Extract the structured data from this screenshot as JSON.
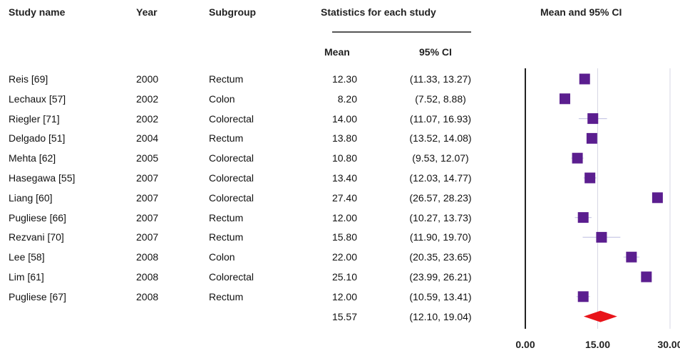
{
  "columns": {
    "study_name": "Study name",
    "year": "Year",
    "subgroup": "Subgroup",
    "statistics": "Statistics for each study",
    "mean": "Mean",
    "ci": "95% CI",
    "forest_title": "Mean and 95% CI"
  },
  "colors": {
    "marker": "#5b1e8f",
    "summary": "#e8141a",
    "axis": "#222222",
    "gridline": "#d7d7e4",
    "ci_line": "#c9c9e6"
  },
  "chart_data": {
    "type": "forest",
    "title": "Mean and 95% CI",
    "xlim": [
      0,
      30
    ],
    "xticks": [
      "0.00",
      "15.00",
      "30.00"
    ],
    "gridlines": [
      15,
      30
    ],
    "studies": [
      {
        "name": "Reis [69]",
        "year": "2000",
        "subgroup": "Rectum",
        "mean": 12.3,
        "lo": 11.33,
        "hi": 13.27,
        "mean_label": "12.30",
        "ci_label": "(11.33, 13.27)"
      },
      {
        "name": "Lechaux [57]",
        "year": "2002",
        "subgroup": "Colon",
        "mean": 8.2,
        "lo": 7.52,
        "hi": 8.88,
        "mean_label": "8.20",
        "ci_label": "(7.52, 8.88)"
      },
      {
        "name": "Riegler [71]",
        "year": "2002",
        "subgroup": "Colorectal",
        "mean": 14.0,
        "lo": 11.07,
        "hi": 16.93,
        "mean_label": "14.00",
        "ci_label": "(11.07, 16.93)"
      },
      {
        "name": "Delgado [51]",
        "year": "2004",
        "subgroup": "Rectum",
        "mean": 13.8,
        "lo": 13.52,
        "hi": 14.08,
        "mean_label": "13.80",
        "ci_label": "(13.52, 14.08)"
      },
      {
        "name": "Mehta [62]",
        "year": "2005",
        "subgroup": "Colorectal",
        "mean": 10.8,
        "lo": 9.53,
        "hi": 12.07,
        "mean_label": "10.80",
        "ci_label": "(9.53, 12.07)"
      },
      {
        "name": "Hasegawa [55]",
        "year": "2007",
        "subgroup": "Colorectal",
        "mean": 13.4,
        "lo": 12.03,
        "hi": 14.77,
        "mean_label": "13.40",
        "ci_label": "(12.03, 14.77)"
      },
      {
        "name": "Liang [60]",
        "year": "2007",
        "subgroup": "Colorectal",
        "mean": 27.4,
        "lo": 26.57,
        "hi": 28.23,
        "mean_label": "27.40",
        "ci_label": "(26.57, 28.23)"
      },
      {
        "name": "Pugliese [66]",
        "year": "2007",
        "subgroup": "Rectum",
        "mean": 12.0,
        "lo": 10.27,
        "hi": 13.73,
        "mean_label": "12.00",
        "ci_label": "(10.27, 13.73)"
      },
      {
        "name": "Rezvani [70]",
        "year": "2007",
        "subgroup": "Rectum",
        "mean": 15.8,
        "lo": 11.9,
        "hi": 19.7,
        "mean_label": "15.80",
        "ci_label": "(11.90, 19.70)"
      },
      {
        "name": "Lee [58]",
        "year": "2008",
        "subgroup": "Colon",
        "mean": 22.0,
        "lo": 20.35,
        "hi": 23.65,
        "mean_label": "22.00",
        "ci_label": "(20.35, 23.65)"
      },
      {
        "name": "Lim [61]",
        "year": "2008",
        "subgroup": "Colorectal",
        "mean": 25.1,
        "lo": 23.99,
        "hi": 26.21,
        "mean_label": "25.10",
        "ci_label": "(23.99, 26.21)"
      },
      {
        "name": "Pugliese [67]",
        "year": "2008",
        "subgroup": "Rectum",
        "mean": 12.0,
        "lo": 10.59,
        "hi": 13.41,
        "mean_label": "12.00",
        "ci_label": "(10.59, 13.41)"
      }
    ],
    "summary": {
      "mean": 15.57,
      "lo": 12.1,
      "hi": 19.04,
      "mean_label": "15.57",
      "ci_label": "(12.10, 19.04)"
    }
  }
}
